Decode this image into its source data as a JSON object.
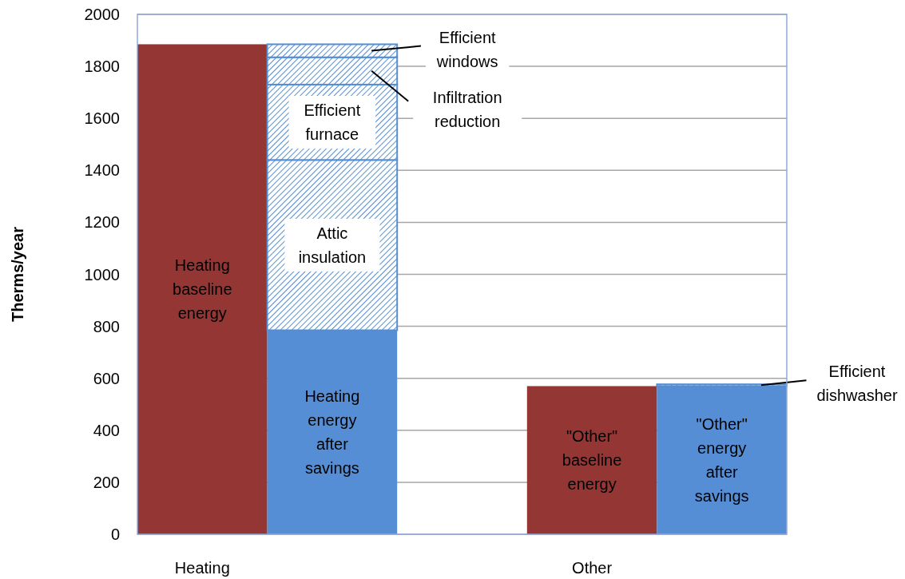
{
  "chart_data": {
    "type": "bar",
    "ylabel": "Therms/year",
    "categories": [
      "Heating",
      null,
      null,
      "Other",
      null
    ],
    "stacked": true,
    "ylim": [
      0,
      2000
    ],
    "yticks": [
      0,
      200,
      400,
      600,
      800,
      1000,
      1200,
      1400,
      1600,
      1800,
      2000
    ],
    "grid": "y",
    "series": [
      {
        "name": "Heating baseline energy",
        "color": "#943634",
        "values": [
          1885,
          null,
          null,
          null,
          null
        ]
      },
      {
        "name": "Heating energy after savings",
        "color": "#558ed5",
        "values": [
          null,
          785,
          null,
          null,
          null
        ]
      },
      {
        "name": "Attic insulation",
        "color": "#558ed5",
        "values": [
          null,
          655,
          null,
          null,
          null
        ]
      },
      {
        "name": "Efficient furnace",
        "color": "#558ed5",
        "values": [
          null,
          290,
          null,
          null,
          null
        ]
      },
      {
        "name": "Infiltration reduction",
        "color": "#558ed5",
        "values": [
          null,
          105,
          null,
          null,
          null
        ]
      },
      {
        "name": "Efficient windows",
        "color": "#558ed5",
        "values": [
          null,
          50,
          null,
          null,
          null
        ]
      },
      {
        "name": "\"Other\" baseline energy",
        "color": "#943634",
        "values": [
          null,
          null,
          null,
          570,
          null
        ]
      },
      {
        "name": "\"Other\" energy after savings",
        "color": "#558ed5",
        "values": [
          null,
          null,
          null,
          null,
          570
        ]
      },
      {
        "name": "Efficient dishwasher",
        "color": "#558ed5",
        "values": [
          null,
          null,
          null,
          null,
          7
        ]
      }
    ]
  }
}
